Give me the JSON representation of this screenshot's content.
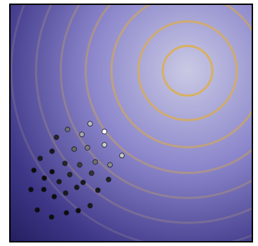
{
  "chart_data": {
    "type": "scatter",
    "xlim": [
      0,
      100
    ],
    "ylim": [
      0,
      100
    ],
    "x": [
      33.1,
      39.0,
      23.8,
      29.7,
      19.2,
      39.0,
      32.0,
      26.5,
      17.4,
      46.2,
      35.2,
      41.3,
      12.5,
      22.7,
      28.8,
      33.7,
      9.9,
      17.4,
      24.7,
      40.7,
      14.2,
      20.3,
      30.2,
      8.7,
      14.0,
      27.6,
      36.3,
      18.3,
      23.0,
      33.1,
      11.3,
      23.3,
      28.2,
      17.2
    ],
    "values": [
      49.7,
      46.4,
      47.3,
      45.2,
      44.0,
      40.8,
      39.6,
      39.0,
      38.1,
      36.3,
      33.6,
      32.4,
      35.1,
      33.0,
      32.4,
      28.9,
      30.1,
      29.5,
      28.3,
      26.2,
      26.8,
      25.3,
      25.0,
      22.0,
      22.0,
      22.9,
      21.7,
      19.0,
      20.5,
      15.2,
      13.4,
      12.2,
      13.1,
      10.4
    ],
    "colors": [
      "#c0c0c0",
      "#ffffff",
      "#707070",
      "#a8a8a8",
      "#262626",
      "#cccccc",
      "#808080",
      "#666666",
      "#1a1a1a",
      "#c4c4c4",
      "#707070",
      "#8c8c8c",
      "#1c1c1c",
      "#262626",
      "#3c3c3c",
      "#333333",
      "#0d0d0d",
      "#0d0d0d",
      "#262626",
      "#262626",
      "#0d0d0d",
      "#1a1a1a",
      "#1a1a1a",
      "#0d0d0d",
      "#0d0d0d",
      "#1a1a1a",
      "#1a1a1a",
      "#0d0d0d",
      "#1a1a1a",
      "#1a1a1a",
      "#0d0d0d",
      "#0d0d0d",
      "#0d0d0d",
      "#0d0d0d"
    ],
    "contours": {
      "center": [
        73.3,
        72.0
      ],
      "radii": [
        10.2,
        20.3,
        31.4,
        42.0,
        52.3,
        62.5,
        72.7
      ],
      "colors": [
        "#d8b060",
        "#d4ac64",
        "#c8a46c",
        "#b89878",
        "#a48c80",
        "#948088",
        "#847890"
      ]
    }
  }
}
